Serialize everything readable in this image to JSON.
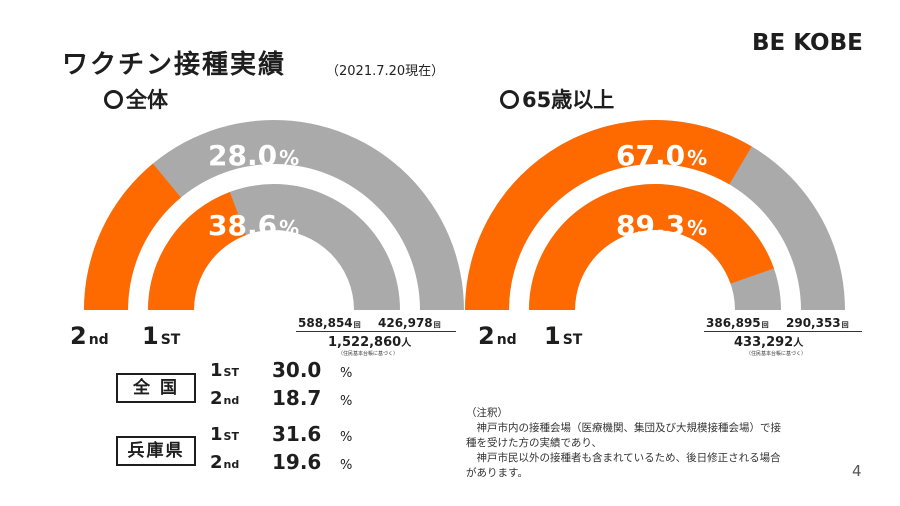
{
  "title": "ワクチン接種実績",
  "date": "（2021.7.20現在）",
  "logo": "BE KOBE",
  "chart_data": [
    {
      "type": "pie",
      "title": "全体",
      "series": [
        {
          "name": "2nd",
          "value": 28.0,
          "label": "28.0",
          "count": "426,978"
        },
        {
          "name": "1ST",
          "value": 38.6,
          "label": "38.6",
          "count": "588,854"
        }
      ],
      "population": "1,522,860",
      "colors": {
        "vaccinated": "#ff6a00",
        "remaining": "#aaaaaa"
      }
    },
    {
      "type": "pie",
      "title": "65歳以上",
      "series": [
        {
          "name": "2nd",
          "value": 67.0,
          "label": "67.0",
          "count": "290,353"
        },
        {
          "name": "1ST",
          "value": 89.3,
          "label": "89.3",
          "count": "386,895"
        }
      ],
      "population": "433,292",
      "colors": {
        "vaccinated": "#ff6a00",
        "remaining": "#aaaaaa"
      }
    }
  ],
  "left": {
    "header": "全体",
    "outer_pct": "28.0",
    "inner_pct": "38.6",
    "label_2nd": "2",
    "label_2nd_sub": "nd",
    "label_1st": "1",
    "label_1st_sub": "ST",
    "count_1st": "588,854",
    "count_2nd": "426,978",
    "total": "1,522,860",
    "basis": "（住民基本台帳に基づく）"
  },
  "right": {
    "header": "65歳以上",
    "outer_pct": "67.0",
    "inner_pct": "89.3",
    "label_2nd": "2",
    "label_2nd_sub": "nd",
    "label_1st": "1",
    "label_1st_sub": "ST",
    "count_1st": "386,895",
    "count_2nd": "290,353",
    "total": "433,292",
    "basis": "（住民基本台帳に基づく）"
  },
  "units": {
    "pct": "%",
    "times": "回",
    "people": "人"
  },
  "national": {
    "label": "全 国",
    "first_label": "1",
    "first_sub": "ST",
    "first_value": "30.0",
    "second_label": "2",
    "second_sub": "nd",
    "second_value": "18.7"
  },
  "prefecture": {
    "label": "兵庫県",
    "first_label": "1",
    "first_sub": "ST",
    "first_value": "31.6",
    "second_label": "2",
    "second_sub": "nd",
    "second_value": "19.6"
  },
  "note": {
    "heading": "（注釈）",
    "line1": "　神戸市内の接種会場（医療機関、集団及び大規模接種会場）で接",
    "line2": "種を受けた方の実績であり、",
    "line3": "　神戸市民以外の接種者も含まれているため、後日修正される場合",
    "line4": "があります。"
  },
  "page_number": "4"
}
